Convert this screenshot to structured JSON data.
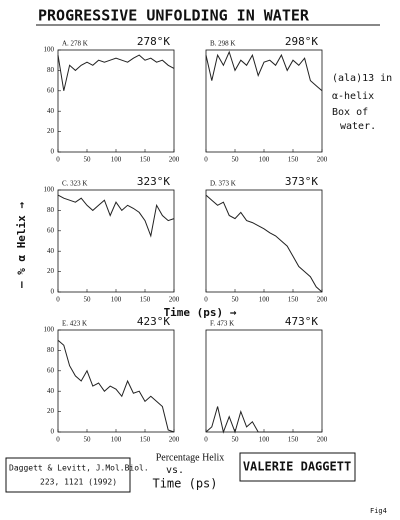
{
  "header": {
    "title": "PROGRESSIVE   UNFOLDING IN WATER"
  },
  "notes": {
    "system": [
      "(ala)13 in",
      "α-helix",
      "Box of",
      "water."
    ],
    "y_label": "— % α Helix →",
    "x_label": "Time (ps) →",
    "citation": [
      "Daggett & Levitt, J.Mol.Biol.",
      "223, 1121 (1992)"
    ],
    "caption": [
      "Percentage Helix",
      "vs.",
      "Time (ps)"
    ],
    "author": "VALERIE DAGGETT",
    "fig": "Fig4"
  },
  "chart_data": [
    {
      "type": "line",
      "title": "A. 278 K",
      "annotation": "278°K",
      "x": [
        0,
        10,
        20,
        30,
        40,
        50,
        60,
        70,
        80,
        90,
        100,
        110,
        120,
        130,
        140,
        150,
        160,
        170,
        180,
        190,
        200
      ],
      "values": [
        95,
        60,
        85,
        80,
        85,
        88,
        85,
        90,
        88,
        90,
        92,
        90,
        88,
        92,
        95,
        90,
        92,
        88,
        90,
        85,
        82
      ],
      "xlim": [
        0,
        200
      ],
      "ylim": [
        0,
        100
      ],
      "xticks": [
        0,
        50,
        100,
        150,
        200
      ],
      "yticks": [
        0,
        20,
        40,
        60,
        80,
        100
      ],
      "color": "#222"
    },
    {
      "type": "line",
      "title": "B. 298 K",
      "annotation": "298°K",
      "x": [
        0,
        10,
        20,
        30,
        40,
        50,
        60,
        70,
        80,
        90,
        100,
        110,
        120,
        130,
        140,
        150,
        160,
        170,
        180,
        190,
        200
      ],
      "values": [
        95,
        70,
        95,
        85,
        98,
        80,
        90,
        85,
        95,
        75,
        88,
        90,
        85,
        95,
        80,
        90,
        85,
        92,
        70,
        65,
        60
      ],
      "xlim": [
        0,
        200
      ],
      "ylim": [
        0,
        100
      ],
      "xticks": [
        0,
        50,
        100,
        150,
        200
      ],
      "color": "#222"
    },
    {
      "type": "line",
      "title": "C. 323 K",
      "annotation": "323°K",
      "x": [
        0,
        10,
        20,
        30,
        40,
        50,
        60,
        70,
        80,
        90,
        100,
        110,
        120,
        130,
        140,
        150,
        160,
        170,
        180,
        190,
        200
      ],
      "values": [
        95,
        92,
        90,
        88,
        92,
        85,
        80,
        85,
        90,
        75,
        88,
        80,
        85,
        82,
        78,
        70,
        55,
        85,
        75,
        70,
        72
      ],
      "xlim": [
        0,
        200
      ],
      "ylim": [
        0,
        100
      ],
      "xticks": [
        0,
        50,
        100,
        150,
        200
      ],
      "yticks": [
        0,
        20,
        40,
        60,
        80,
        100
      ],
      "color": "#222"
    },
    {
      "type": "line",
      "title": "D. 373 K",
      "annotation": "373°K",
      "x": [
        0,
        10,
        20,
        30,
        40,
        50,
        60,
        70,
        80,
        90,
        100,
        110,
        120,
        130,
        140,
        150,
        160,
        170,
        180,
        190,
        200
      ],
      "values": [
        95,
        90,
        85,
        88,
        75,
        72,
        78,
        70,
        68,
        65,
        62,
        58,
        55,
        50,
        45,
        35,
        25,
        20,
        15,
        5,
        0
      ],
      "xlim": [
        0,
        200
      ],
      "ylim": [
        0,
        100
      ],
      "xticks": [
        0,
        50,
        100,
        150,
        200
      ],
      "color": "#222"
    },
    {
      "type": "line",
      "title": "E. 423 K",
      "annotation": "423°K",
      "x": [
        0,
        10,
        20,
        30,
        40,
        50,
        60,
        70,
        80,
        90,
        100,
        110,
        120,
        130,
        140,
        150,
        160,
        170,
        180,
        190,
        200
      ],
      "values": [
        90,
        85,
        65,
        55,
        50,
        60,
        45,
        48,
        40,
        45,
        42,
        35,
        50,
        38,
        40,
        30,
        35,
        30,
        25,
        2,
        0
      ],
      "xlim": [
        0,
        200
      ],
      "ylim": [
        0,
        100
      ],
      "xticks": [
        0,
        50,
        100,
        150,
        200
      ],
      "yticks": [
        0,
        20,
        40,
        60,
        80,
        100
      ],
      "color": "#222"
    },
    {
      "type": "line",
      "title": "F. 473 K",
      "annotation": "473°K",
      "x": [
        0,
        10,
        20,
        30,
        40,
        50,
        60,
        70,
        80,
        90,
        100,
        110,
        120,
        130,
        140,
        150,
        160,
        170,
        180,
        190,
        200
      ],
      "values": [
        0,
        5,
        25,
        0,
        15,
        0,
        20,
        5,
        10,
        0,
        0,
        0,
        0,
        0,
        0,
        0,
        0,
        0,
        0,
        0,
        0
      ],
      "xlim": [
        0,
        200
      ],
      "ylim": [
        0,
        100
      ],
      "xticks": [
        0,
        50,
        100,
        150,
        200
      ],
      "color": "#222"
    }
  ]
}
